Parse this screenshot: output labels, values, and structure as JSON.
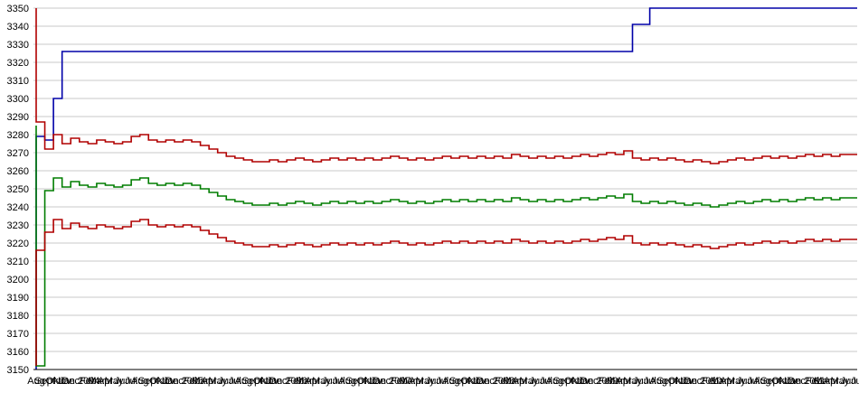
{
  "chart_data": {
    "type": "line",
    "title": "",
    "xlabel": "",
    "ylabel": "",
    "grid": true,
    "legend": "none",
    "y_min": 3150,
    "y_max": 3350,
    "y_step": 10,
    "y_tick_labels": [
      "3350",
      "3340",
      "3330",
      "3320",
      "3310",
      "3300",
      "3290",
      "3280",
      "3270",
      "3260",
      "3250",
      "3240",
      "3230",
      "3220",
      "3210",
      "3200",
      "3190",
      "3180",
      "3170",
      "3160",
      "3150"
    ],
    "x_labels": [
      "Aug",
      "Sept",
      "Okt",
      "Nov",
      "Dec",
      "Jan 2004",
      "Feb",
      "Mar",
      "Apr",
      "May",
      "Jun",
      "Jul",
      "Aug",
      "Sept",
      "Okt",
      "Nov",
      "Dec",
      "Jan 2005",
      "Feb",
      "Mar",
      "Apr",
      "May",
      "Jun",
      "Jul",
      "Aug",
      "Sept",
      "Okt",
      "Nov",
      "Dec",
      "Jan 2006",
      "Feb",
      "Mar",
      "Apr",
      "May",
      "Jun",
      "Jul",
      "Aug",
      "Sept",
      "Okt",
      "Nov",
      "Dec",
      "Jan 2007",
      "Feb",
      "Mar",
      "Apr",
      "May",
      "Jun",
      "Jul",
      "Aug",
      "Sept",
      "Okt",
      "Nov",
      "Dec",
      "Jan 2008",
      "Feb",
      "Mar",
      "Apr",
      "May",
      "Jun",
      "Jul",
      "Aug",
      "Sept",
      "Okt",
      "Nov",
      "Dec",
      "Jan 2009",
      "Feb",
      "Mar",
      "Apr",
      "May",
      "Jun",
      "Jul",
      "Aug",
      "Sept",
      "Okt",
      "Nov",
      "Dec",
      "Jan 2010",
      "Feb",
      "Mar",
      "Apr",
      "May",
      "Jun",
      "Jul",
      "Aug",
      "Sept",
      "Okt",
      "Nov",
      "Dec",
      "Jan 2011",
      "Feb",
      "Mar",
      "Apr",
      "May",
      "Jun",
      "Jul"
    ],
    "colors": {
      "grid": "#c9c9c9",
      "axis": "#000000",
      "blue": "#0000a8",
      "red": "#b00000",
      "green": "#007d00",
      "text": "#000000",
      "background": "#ffffff"
    },
    "series": [
      {
        "id": "top-blue-line",
        "color_key": "blue",
        "values": [
          3150,
          3279,
          3277,
          3300,
          3326,
          3326,
          3326,
          3326,
          3326,
          3326,
          3326,
          3326,
          3326,
          3326,
          3326,
          3326,
          3326,
          3326,
          3326,
          3326,
          3326,
          3326,
          3326,
          3326,
          3326,
          3326,
          3326,
          3326,
          3326,
          3326,
          3326,
          3326,
          3326,
          3326,
          3326,
          3326,
          3326,
          3326,
          3326,
          3326,
          3326,
          3326,
          3326,
          3326,
          3326,
          3326,
          3326,
          3326,
          3326,
          3326,
          3326,
          3326,
          3326,
          3326,
          3326,
          3326,
          3326,
          3326,
          3326,
          3326,
          3326,
          3326,
          3326,
          3326,
          3326,
          3326,
          3326,
          3326,
          3326,
          3326,
          3341,
          3341,
          3350,
          3350,
          3350,
          3350,
          3350,
          3350,
          3350,
          3350,
          3350,
          3350,
          3350,
          3350,
          3350,
          3350,
          3350,
          3350,
          3350,
          3350,
          3350,
          3350,
          3350,
          3350,
          3350,
          3350
        ]
      },
      {
        "id": "upper-red-line",
        "color_key": "red",
        "values": [
          3350,
          3287,
          3272,
          3280,
          3275,
          3278,
          3276,
          3275,
          3277,
          3276,
          3275,
          3276,
          3279,
          3280,
          3277,
          3276,
          3277,
          3276,
          3277,
          3276,
          3274,
          3272,
          3270,
          3268,
          3267,
          3266,
          3265,
          3265,
          3266,
          3265,
          3266,
          3267,
          3266,
          3265,
          3266,
          3267,
          3266,
          3267,
          3266,
          3267,
          3266,
          3267,
          3268,
          3267,
          3266,
          3267,
          3266,
          3267,
          3268,
          3267,
          3268,
          3267,
          3268,
          3267,
          3268,
          3267,
          3269,
          3268,
          3267,
          3268,
          3267,
          3268,
          3267,
          3268,
          3269,
          3268,
          3269,
          3270,
          3269,
          3271,
          3267,
          3266,
          3267,
          3266,
          3267,
          3266,
          3265,
          3266,
          3265,
          3264,
          3265,
          3266,
          3267,
          3266,
          3267,
          3268,
          3267,
          3268,
          3267,
          3268,
          3269,
          3268,
          3269,
          3268,
          3269,
          3269
        ]
      },
      {
        "id": "middle-green-line",
        "color_key": "green",
        "values": [
          3285,
          3152,
          3249,
          3256,
          3251,
          3254,
          3252,
          3251,
          3253,
          3252,
          3251,
          3252,
          3255,
          3256,
          3253,
          3252,
          3253,
          3252,
          3253,
          3252,
          3250,
          3248,
          3246,
          3244,
          3243,
          3242,
          3241,
          3241,
          3242,
          3241,
          3242,
          3243,
          3242,
          3241,
          3242,
          3243,
          3242,
          3243,
          3242,
          3243,
          3242,
          3243,
          3244,
          3243,
          3242,
          3243,
          3242,
          3243,
          3244,
          3243,
          3244,
          3243,
          3244,
          3243,
          3244,
          3243,
          3245,
          3244,
          3243,
          3244,
          3243,
          3244,
          3243,
          3244,
          3245,
          3244,
          3245,
          3246,
          3245,
          3247,
          3243,
          3242,
          3243,
          3242,
          3243,
          3242,
          3241,
          3242,
          3241,
          3240,
          3241,
          3242,
          3243,
          3242,
          3243,
          3244,
          3243,
          3244,
          3243,
          3244,
          3245,
          3244,
          3245,
          3244,
          3245,
          3245
        ]
      },
      {
        "id": "lower-red-line",
        "color_key": "red",
        "values": [
          3152,
          3216,
          3226,
          3233,
          3228,
          3231,
          3229,
          3228,
          3230,
          3229,
          3228,
          3229,
          3232,
          3233,
          3230,
          3229,
          3230,
          3229,
          3230,
          3229,
          3227,
          3225,
          3223,
          3221,
          3220,
          3219,
          3218,
          3218,
          3219,
          3218,
          3219,
          3220,
          3219,
          3218,
          3219,
          3220,
          3219,
          3220,
          3219,
          3220,
          3219,
          3220,
          3221,
          3220,
          3219,
          3220,
          3219,
          3220,
          3221,
          3220,
          3221,
          3220,
          3221,
          3220,
          3221,
          3220,
          3222,
          3221,
          3220,
          3221,
          3220,
          3221,
          3220,
          3221,
          3222,
          3221,
          3222,
          3223,
          3222,
          3224,
          3220,
          3219,
          3220,
          3219,
          3220,
          3219,
          3218,
          3219,
          3218,
          3217,
          3218,
          3219,
          3220,
          3219,
          3220,
          3221,
          3220,
          3221,
          3220,
          3221,
          3222,
          3221,
          3222,
          3221,
          3222,
          3222
        ]
      }
    ]
  }
}
